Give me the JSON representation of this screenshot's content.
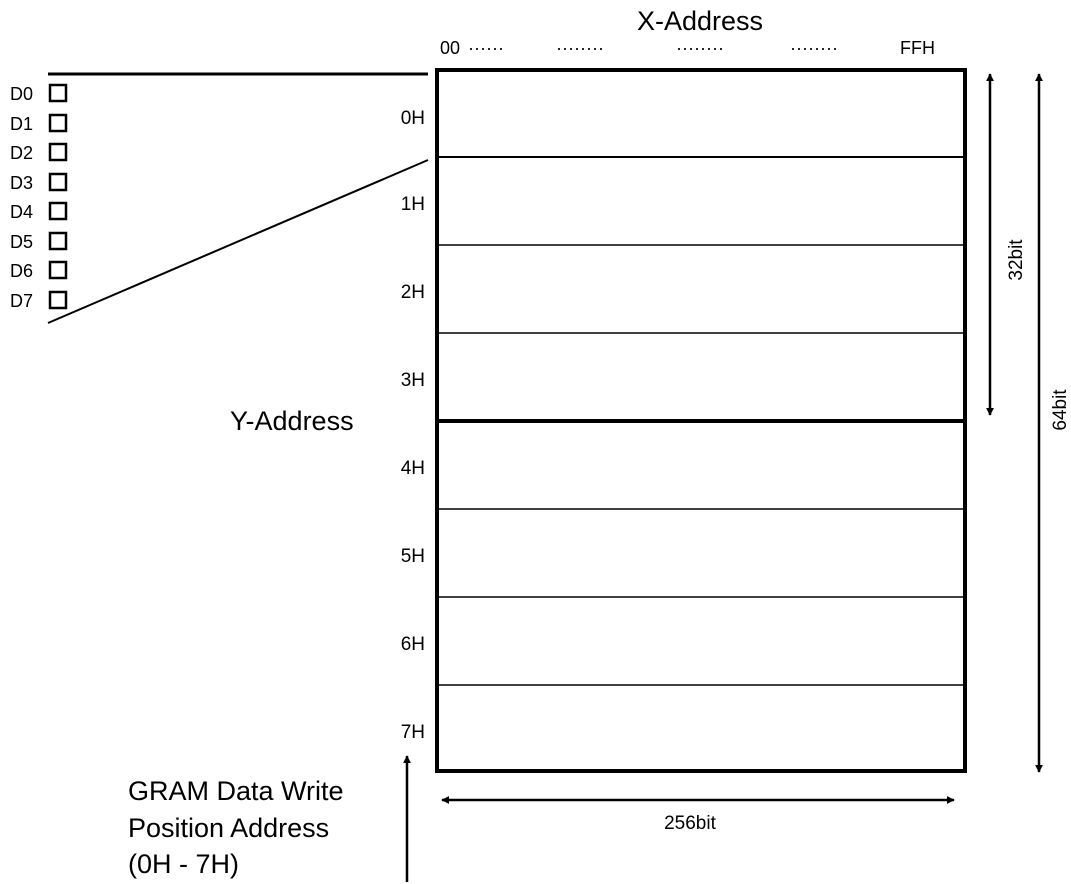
{
  "x_axis": {
    "title": "X-Address",
    "start_label": "00",
    "dots": [
      "······",
      "········",
      "········",
      "········"
    ],
    "end_label": "FFH"
  },
  "y_axis": {
    "title": "Y-Address"
  },
  "data_bits": [
    "D0",
    "D1",
    "D2",
    "D3",
    "D4",
    "D5",
    "D6",
    "D7"
  ],
  "pages": [
    "0H",
    "1H",
    "2H",
    "3H",
    "4H",
    "5H",
    "6H",
    "7H"
  ],
  "dimensions": {
    "half_height": "32bit",
    "full_height": "64bit",
    "width": "256bit"
  },
  "caption": {
    "line1": "GRAM Data Write",
    "line2": "Position Address",
    "line3": "(0H - 7H)"
  }
}
